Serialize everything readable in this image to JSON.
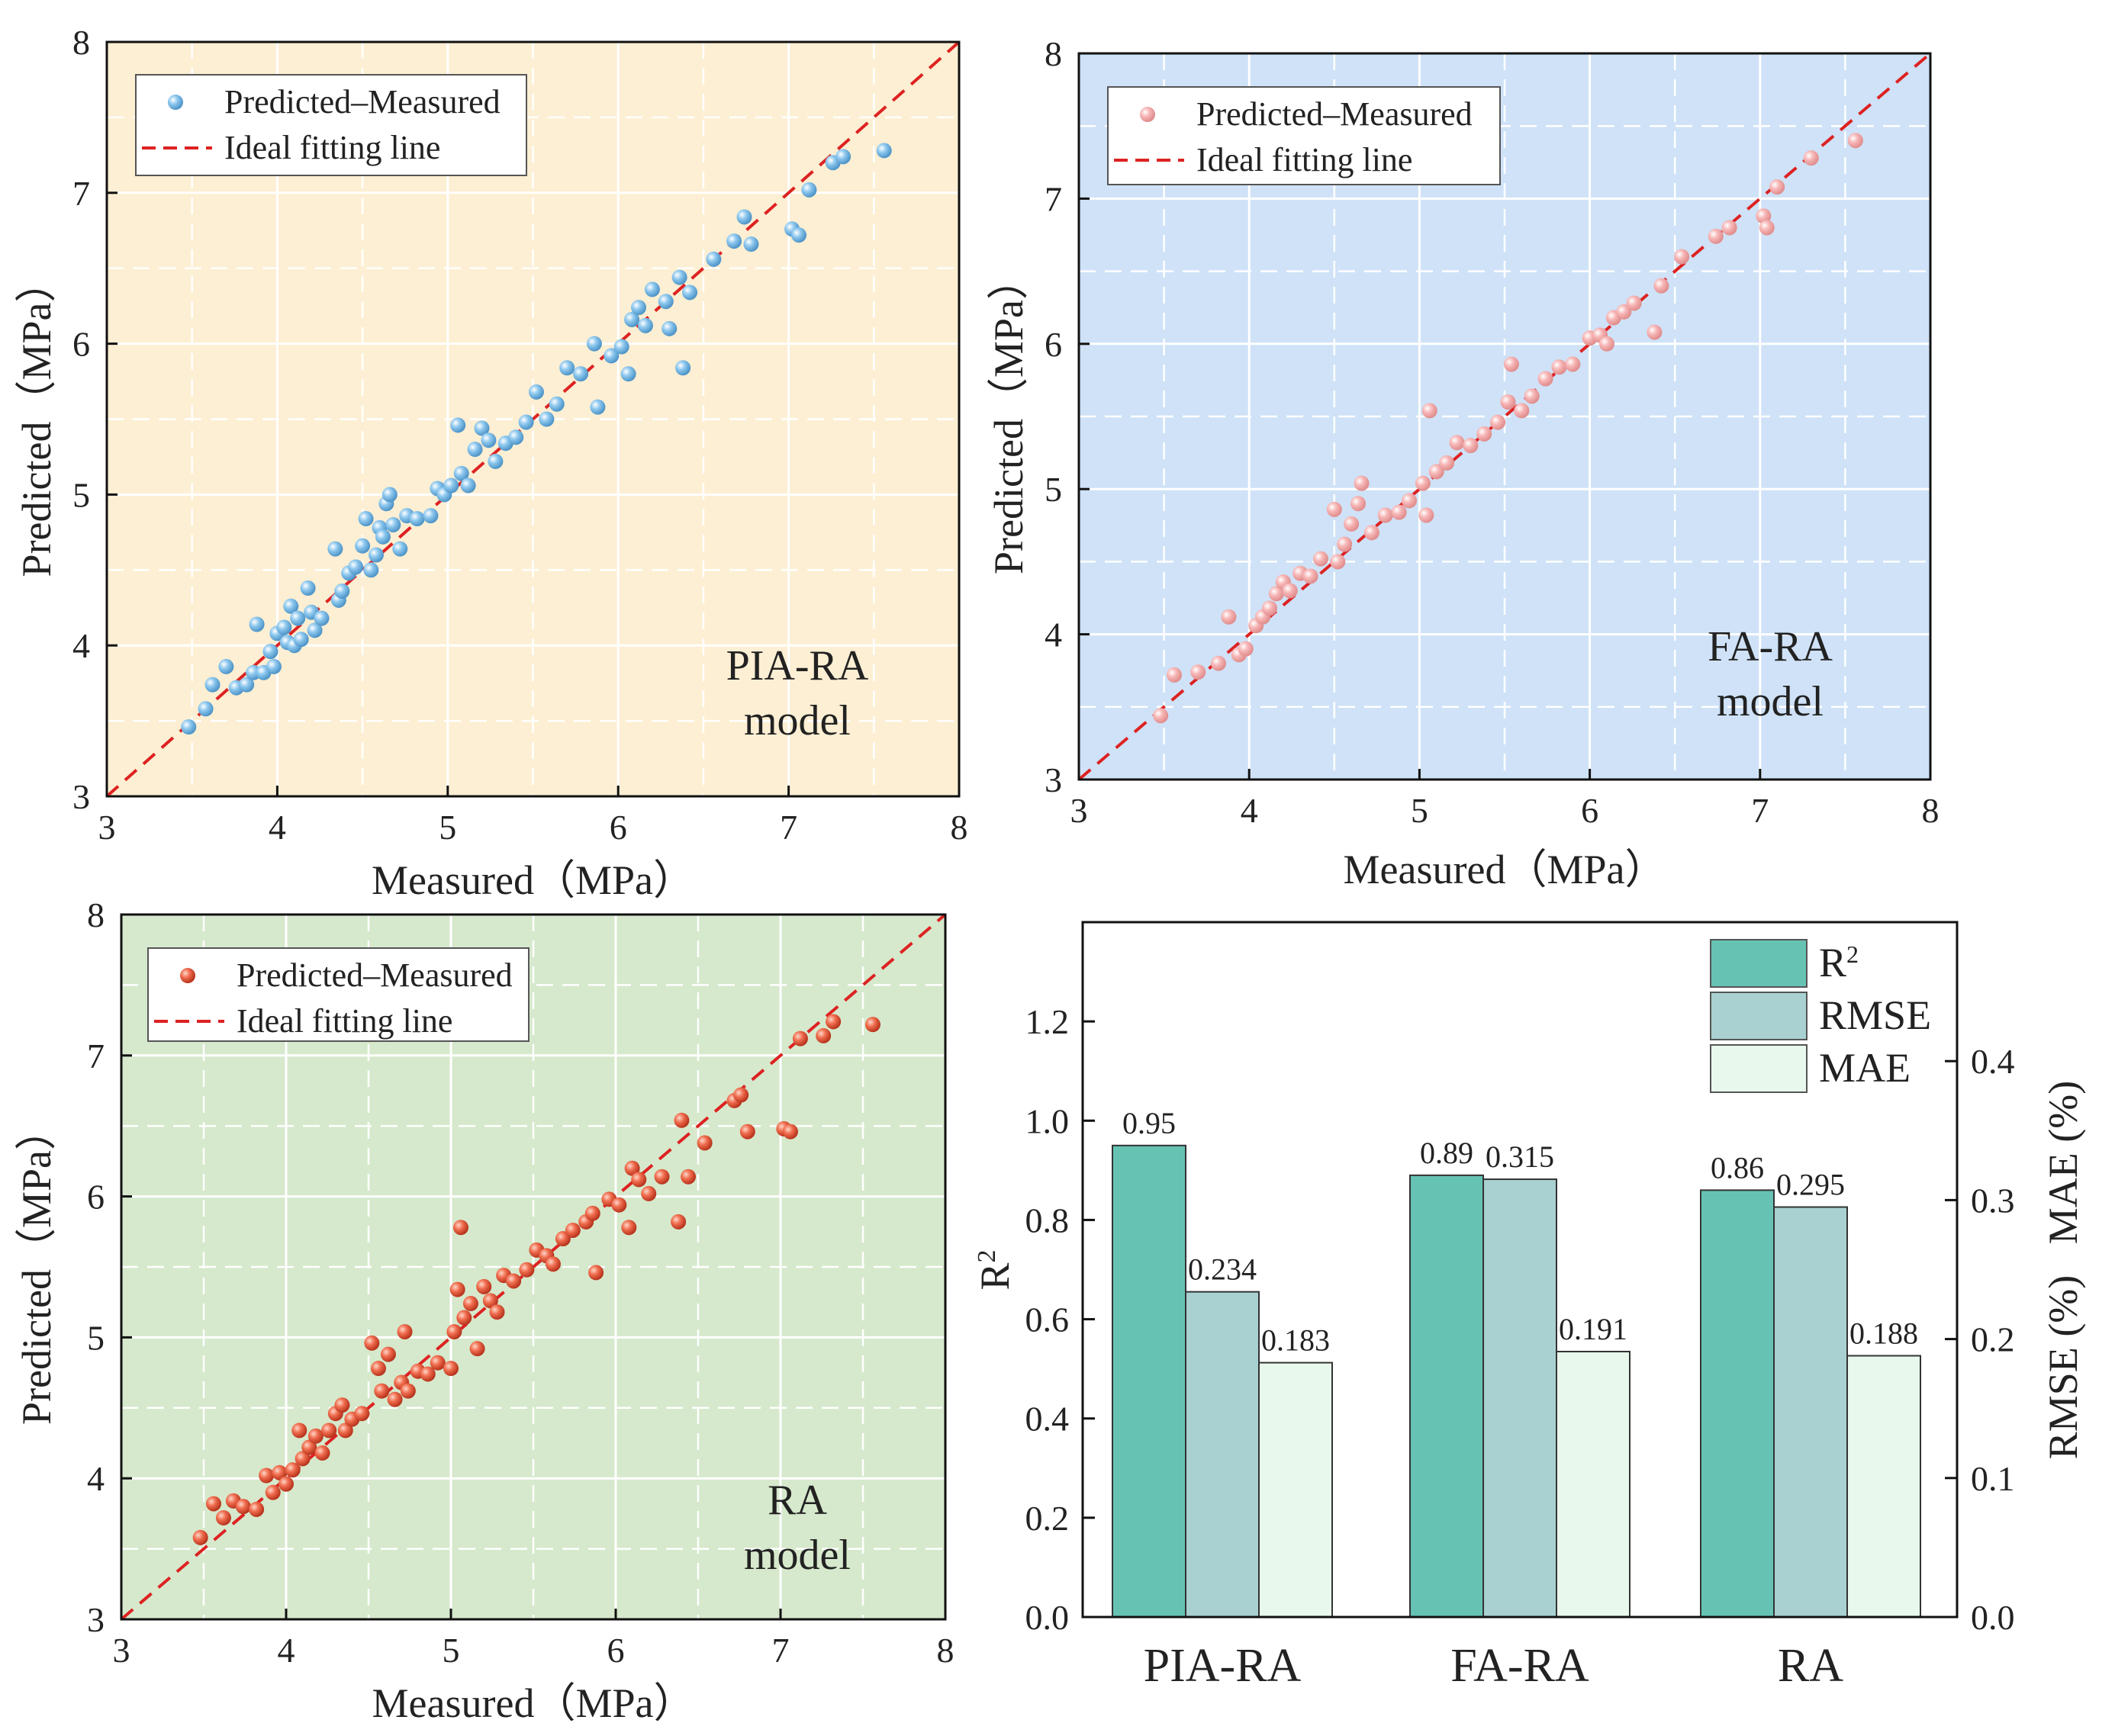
{
  "colors": {
    "pia_bg": "#fdefd3",
    "fa_bg": "#cfe2f7",
    "ra_bg": "#d6e9cc",
    "pia_point": "#8cc7ee",
    "fa_point": "#f7b6b6",
    "ra_point": "#f06d4f",
    "ideal_line": "#dd2222",
    "r2_bar": "#66c3b4",
    "rmse_bar": "#a9d1d1",
    "mae_bar": "#e8f8ec"
  },
  "chart_data": [
    {
      "id": "pia",
      "type": "scatter",
      "model_label": [
        "PIA-RA",
        "model"
      ],
      "xlabel": "Measured（MPa）",
      "ylabel": "Predicted（MPa）",
      "xlim": [
        3,
        8
      ],
      "ylim": [
        3,
        8
      ],
      "ticks": [
        3,
        4,
        5,
        6,
        7,
        8
      ],
      "legend": [
        "Predicted–Measured",
        "Ideal fitting line"
      ],
      "legend_position": "top-left",
      "ideal_line": [
        [
          3,
          3
        ],
        [
          8,
          8
        ]
      ],
      "points": [
        [
          3.48,
          3.46
        ],
        [
          3.58,
          3.58
        ],
        [
          3.62,
          3.74
        ],
        [
          3.7,
          3.86
        ],
        [
          3.76,
          3.72
        ],
        [
          3.82,
          3.74
        ],
        [
          3.86,
          3.82
        ],
        [
          3.88,
          4.14
        ],
        [
          3.92,
          3.82
        ],
        [
          3.96,
          3.96
        ],
        [
          3.98,
          3.86
        ],
        [
          4.0,
          4.08
        ],
        [
          4.04,
          4.12
        ],
        [
          4.06,
          4.02
        ],
        [
          4.08,
          4.26
        ],
        [
          4.1,
          4.0
        ],
        [
          4.12,
          4.18
        ],
        [
          4.14,
          4.04
        ],
        [
          4.18,
          4.38
        ],
        [
          4.2,
          4.22
        ],
        [
          4.22,
          4.1
        ],
        [
          4.26,
          4.18
        ],
        [
          4.34,
          4.64
        ],
        [
          4.36,
          4.3
        ],
        [
          4.38,
          4.36
        ],
        [
          4.42,
          4.48
        ],
        [
          4.46,
          4.52
        ],
        [
          4.5,
          4.66
        ],
        [
          4.52,
          4.84
        ],
        [
          4.55,
          4.5
        ],
        [
          4.58,
          4.6
        ],
        [
          4.6,
          4.78
        ],
        [
          4.62,
          4.72
        ],
        [
          4.64,
          4.94
        ],
        [
          4.66,
          5.0
        ],
        [
          4.68,
          4.8
        ],
        [
          4.72,
          4.64
        ],
        [
          4.76,
          4.86
        ],
        [
          4.82,
          4.84
        ],
        [
          4.9,
          4.86
        ],
        [
          4.94,
          5.04
        ],
        [
          4.98,
          5.0
        ],
        [
          5.02,
          5.06
        ],
        [
          5.06,
          5.46
        ],
        [
          5.08,
          5.14
        ],
        [
          5.12,
          5.06
        ],
        [
          5.16,
          5.3
        ],
        [
          5.2,
          5.44
        ],
        [
          5.24,
          5.36
        ],
        [
          5.28,
          5.22
        ],
        [
          5.34,
          5.34
        ],
        [
          5.4,
          5.38
        ],
        [
          5.46,
          5.48
        ],
        [
          5.52,
          5.68
        ],
        [
          5.58,
          5.5
        ],
        [
          5.64,
          5.6
        ],
        [
          5.7,
          5.84
        ],
        [
          5.78,
          5.8
        ],
        [
          5.86,
          6.0
        ],
        [
          5.88,
          5.58
        ],
        [
          5.96,
          5.92
        ],
        [
          6.02,
          5.98
        ],
        [
          6.06,
          5.8
        ],
        [
          6.08,
          6.16
        ],
        [
          6.12,
          6.24
        ],
        [
          6.16,
          6.12
        ],
        [
          6.2,
          6.36
        ],
        [
          6.28,
          6.28
        ],
        [
          6.3,
          6.1
        ],
        [
          6.36,
          6.44
        ],
        [
          6.38,
          5.84
        ],
        [
          6.42,
          6.34
        ],
        [
          6.56,
          6.56
        ],
        [
          6.68,
          6.68
        ],
        [
          6.74,
          6.84
        ],
        [
          6.78,
          6.66
        ],
        [
          7.02,
          6.76
        ],
        [
          7.06,
          6.72
        ],
        [
          7.12,
          7.02
        ],
        [
          7.26,
          7.2
        ],
        [
          7.32,
          7.24
        ],
        [
          7.56,
          7.28
        ]
      ]
    },
    {
      "id": "fa",
      "type": "scatter",
      "model_label": [
        "FA-RA",
        "model"
      ],
      "xlabel": "Measured（MPa）",
      "ylabel": "Predicted（MPa）",
      "xlim": [
        3,
        8
      ],
      "ylim": [
        3,
        8
      ],
      "ticks": [
        3,
        4,
        5,
        6,
        7,
        8
      ],
      "legend": [
        "Predicted–Measured",
        "Ideal fitting line"
      ],
      "legend_position": "top-left",
      "ideal_line": [
        [
          3,
          3
        ],
        [
          8,
          8
        ]
      ],
      "points": [
        [
          3.48,
          3.44
        ],
        [
          3.56,
          3.72
        ],
        [
          3.7,
          3.74
        ],
        [
          3.82,
          3.8
        ],
        [
          3.88,
          4.12
        ],
        [
          3.94,
          3.86
        ],
        [
          3.98,
          3.9
        ],
        [
          4.04,
          4.06
        ],
        [
          4.08,
          4.12
        ],
        [
          4.12,
          4.18
        ],
        [
          4.16,
          4.28
        ],
        [
          4.2,
          4.36
        ],
        [
          4.24,
          4.3
        ],
        [
          4.3,
          4.42
        ],
        [
          4.36,
          4.4
        ],
        [
          4.42,
          4.52
        ],
        [
          4.5,
          4.86
        ],
        [
          4.52,
          4.5
        ],
        [
          4.56,
          4.62
        ],
        [
          4.6,
          4.76
        ],
        [
          4.64,
          4.9
        ],
        [
          4.66,
          5.04
        ],
        [
          4.72,
          4.7
        ],
        [
          4.8,
          4.82
        ],
        [
          4.88,
          4.84
        ],
        [
          4.94,
          4.92
        ],
        [
          5.02,
          5.04
        ],
        [
          5.04,
          4.82
        ],
        [
          5.06,
          5.54
        ],
        [
          5.1,
          5.12
        ],
        [
          5.16,
          5.18
        ],
        [
          5.22,
          5.32
        ],
        [
          5.3,
          5.3
        ],
        [
          5.38,
          5.38
        ],
        [
          5.46,
          5.46
        ],
        [
          5.52,
          5.6
        ],
        [
          5.54,
          5.86
        ],
        [
          5.6,
          5.54
        ],
        [
          5.66,
          5.64
        ],
        [
          5.74,
          5.76
        ],
        [
          5.82,
          5.84
        ],
        [
          5.9,
          5.86
        ],
        [
          6.0,
          6.04
        ],
        [
          6.06,
          6.06
        ],
        [
          6.1,
          6.0
        ],
        [
          6.14,
          6.18
        ],
        [
          6.2,
          6.22
        ],
        [
          6.26,
          6.28
        ],
        [
          6.38,
          6.08
        ],
        [
          6.42,
          6.4
        ],
        [
          6.54,
          6.6
        ],
        [
          6.74,
          6.74
        ],
        [
          6.82,
          6.8
        ],
        [
          7.02,
          6.88
        ],
        [
          7.04,
          6.8
        ],
        [
          7.1,
          7.08
        ],
        [
          7.3,
          7.28
        ],
        [
          7.56,
          7.4
        ]
      ]
    },
    {
      "id": "ra",
      "type": "scatter",
      "model_label": [
        "RA",
        "model"
      ],
      "xlabel": "Measured（MPa）",
      "ylabel": "Predicted（MPa）",
      "xlim": [
        3,
        8
      ],
      "ylim": [
        3,
        8
      ],
      "ticks": [
        3,
        4,
        5,
        6,
        7,
        8
      ],
      "legend": [
        "Predicted–Measured",
        "Ideal fitting line"
      ],
      "legend_position": "top-left",
      "ideal_line": [
        [
          3,
          3
        ],
        [
          8,
          8
        ]
      ],
      "points": [
        [
          3.48,
          3.58
        ],
        [
          3.56,
          3.82
        ],
        [
          3.62,
          3.72
        ],
        [
          3.68,
          3.84
        ],
        [
          3.74,
          3.8
        ],
        [
          3.82,
          3.78
        ],
        [
          3.88,
          4.02
        ],
        [
          3.92,
          3.9
        ],
        [
          3.96,
          4.04
        ],
        [
          4.0,
          3.96
        ],
        [
          4.04,
          4.06
        ],
        [
          4.08,
          4.34
        ],
        [
          4.1,
          4.14
        ],
        [
          4.14,
          4.22
        ],
        [
          4.18,
          4.3
        ],
        [
          4.22,
          4.18
        ],
        [
          4.26,
          4.34
        ],
        [
          4.3,
          4.46
        ],
        [
          4.34,
          4.52
        ],
        [
          4.36,
          4.34
        ],
        [
          4.4,
          4.42
        ],
        [
          4.46,
          4.46
        ],
        [
          4.52,
          4.96
        ],
        [
          4.56,
          4.78
        ],
        [
          4.58,
          4.62
        ],
        [
          4.62,
          4.88
        ],
        [
          4.66,
          4.56
        ],
        [
          4.7,
          4.68
        ],
        [
          4.72,
          5.04
        ],
        [
          4.74,
          4.62
        ],
        [
          4.8,
          4.76
        ],
        [
          4.86,
          4.74
        ],
        [
          4.92,
          4.82
        ],
        [
          5.0,
          4.78
        ],
        [
          5.02,
          5.04
        ],
        [
          5.04,
          5.34
        ],
        [
          5.06,
          5.78
        ],
        [
          5.08,
          5.14
        ],
        [
          5.12,
          5.24
        ],
        [
          5.16,
          4.92
        ],
        [
          5.2,
          5.36
        ],
        [
          5.24,
          5.26
        ],
        [
          5.28,
          5.18
        ],
        [
          5.32,
          5.44
        ],
        [
          5.38,
          5.4
        ],
        [
          5.46,
          5.48
        ],
        [
          5.52,
          5.62
        ],
        [
          5.58,
          5.58
        ],
        [
          5.62,
          5.52
        ],
        [
          5.68,
          5.7
        ],
        [
          5.74,
          5.76
        ],
        [
          5.82,
          5.82
        ],
        [
          5.86,
          5.88
        ],
        [
          5.88,
          5.46
        ],
        [
          5.96,
          5.98
        ],
        [
          6.02,
          5.94
        ],
        [
          6.08,
          5.78
        ],
        [
          6.1,
          6.2
        ],
        [
          6.14,
          6.12
        ],
        [
          6.2,
          6.02
        ],
        [
          6.28,
          6.14
        ],
        [
          6.38,
          5.82
        ],
        [
          6.4,
          6.54
        ],
        [
          6.44,
          6.14
        ],
        [
          6.54,
          6.38
        ],
        [
          6.72,
          6.68
        ],
        [
          6.76,
          6.72
        ],
        [
          6.8,
          6.46
        ],
        [
          7.02,
          6.48
        ],
        [
          7.06,
          6.46
        ],
        [
          7.12,
          7.12
        ],
        [
          7.26,
          7.14
        ],
        [
          7.32,
          7.24
        ],
        [
          7.56,
          7.22
        ]
      ]
    },
    {
      "id": "bars",
      "type": "bar",
      "categories": [
        "PIA-RA",
        "FA-RA",
        "RA"
      ],
      "series": [
        {
          "name": "R",
          "name_sup": "2",
          "axis": "left",
          "values": [
            0.95,
            0.89,
            0.86
          ],
          "labels": [
            "0.95",
            "0.89",
            "0.86"
          ]
        },
        {
          "name": "RMSE",
          "axis": "right",
          "values": [
            0.234,
            0.315,
            0.295
          ],
          "labels": [
            "0.234",
            "0.315",
            "0.295"
          ]
        },
        {
          "name": "MAE",
          "axis": "right",
          "values": [
            0.183,
            0.191,
            0.188
          ],
          "labels": [
            "0.183",
            "0.191",
            "0.188"
          ]
        }
      ],
      "ylabel_left": "R",
      "ylabel_left_sup": "2",
      "ylabel_right": "RMSE (%)   MAE (%)",
      "ylim_left": [
        0,
        1.4
      ],
      "ylim_right": [
        0,
        0.5
      ],
      "left_ticks": [
        "0.0",
        "0.2",
        "0.4",
        "0.6",
        "0.8",
        "1.0",
        "1.2"
      ],
      "right_ticks": [
        "0.0",
        "0.1",
        "0.2",
        "0.3",
        "0.4"
      ],
      "legend_position": "top-right"
    }
  ]
}
